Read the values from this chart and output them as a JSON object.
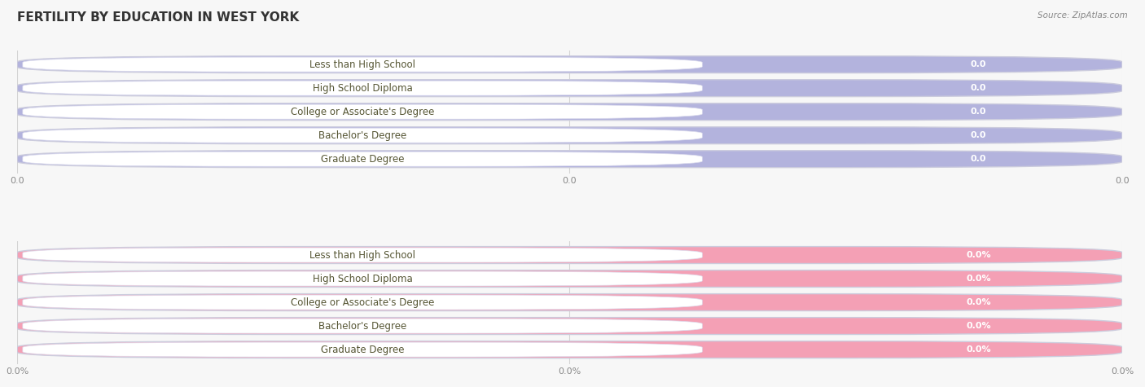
{
  "title": "FERTILITY BY EDUCATION IN WEST YORK",
  "source": "Source: ZipAtlas.com",
  "categories": [
    "Less than High School",
    "High School Diploma",
    "College or Associate's Degree",
    "Bachelor's Degree",
    "Graduate Degree"
  ],
  "top_values": [
    0.0,
    0.0,
    0.0,
    0.0,
    0.0
  ],
  "bottom_values": [
    0.0,
    0.0,
    0.0,
    0.0,
    0.0
  ],
  "top_bar_color": "#b3b3dd",
  "bottom_bar_color": "#f4a0b5",
  "white_pill_color": "#ffffff",
  "bg_color": "#f7f7f7",
  "label_text_color": "#555533",
  "value_top_color": "#ffffff",
  "value_bot_color": "#ffffff",
  "grid_line_color": "#cccccc",
  "tick_color": "#888888",
  "top_tick_labels": [
    "0.0",
    "0.0",
    "0.0"
  ],
  "bottom_tick_labels": [
    "0.0%",
    "0.0%",
    "0.0%"
  ],
  "title_fontsize": 11,
  "label_fontsize": 8.5,
  "value_fontsize": 8,
  "tick_fontsize": 8,
  "source_fontsize": 7.5
}
